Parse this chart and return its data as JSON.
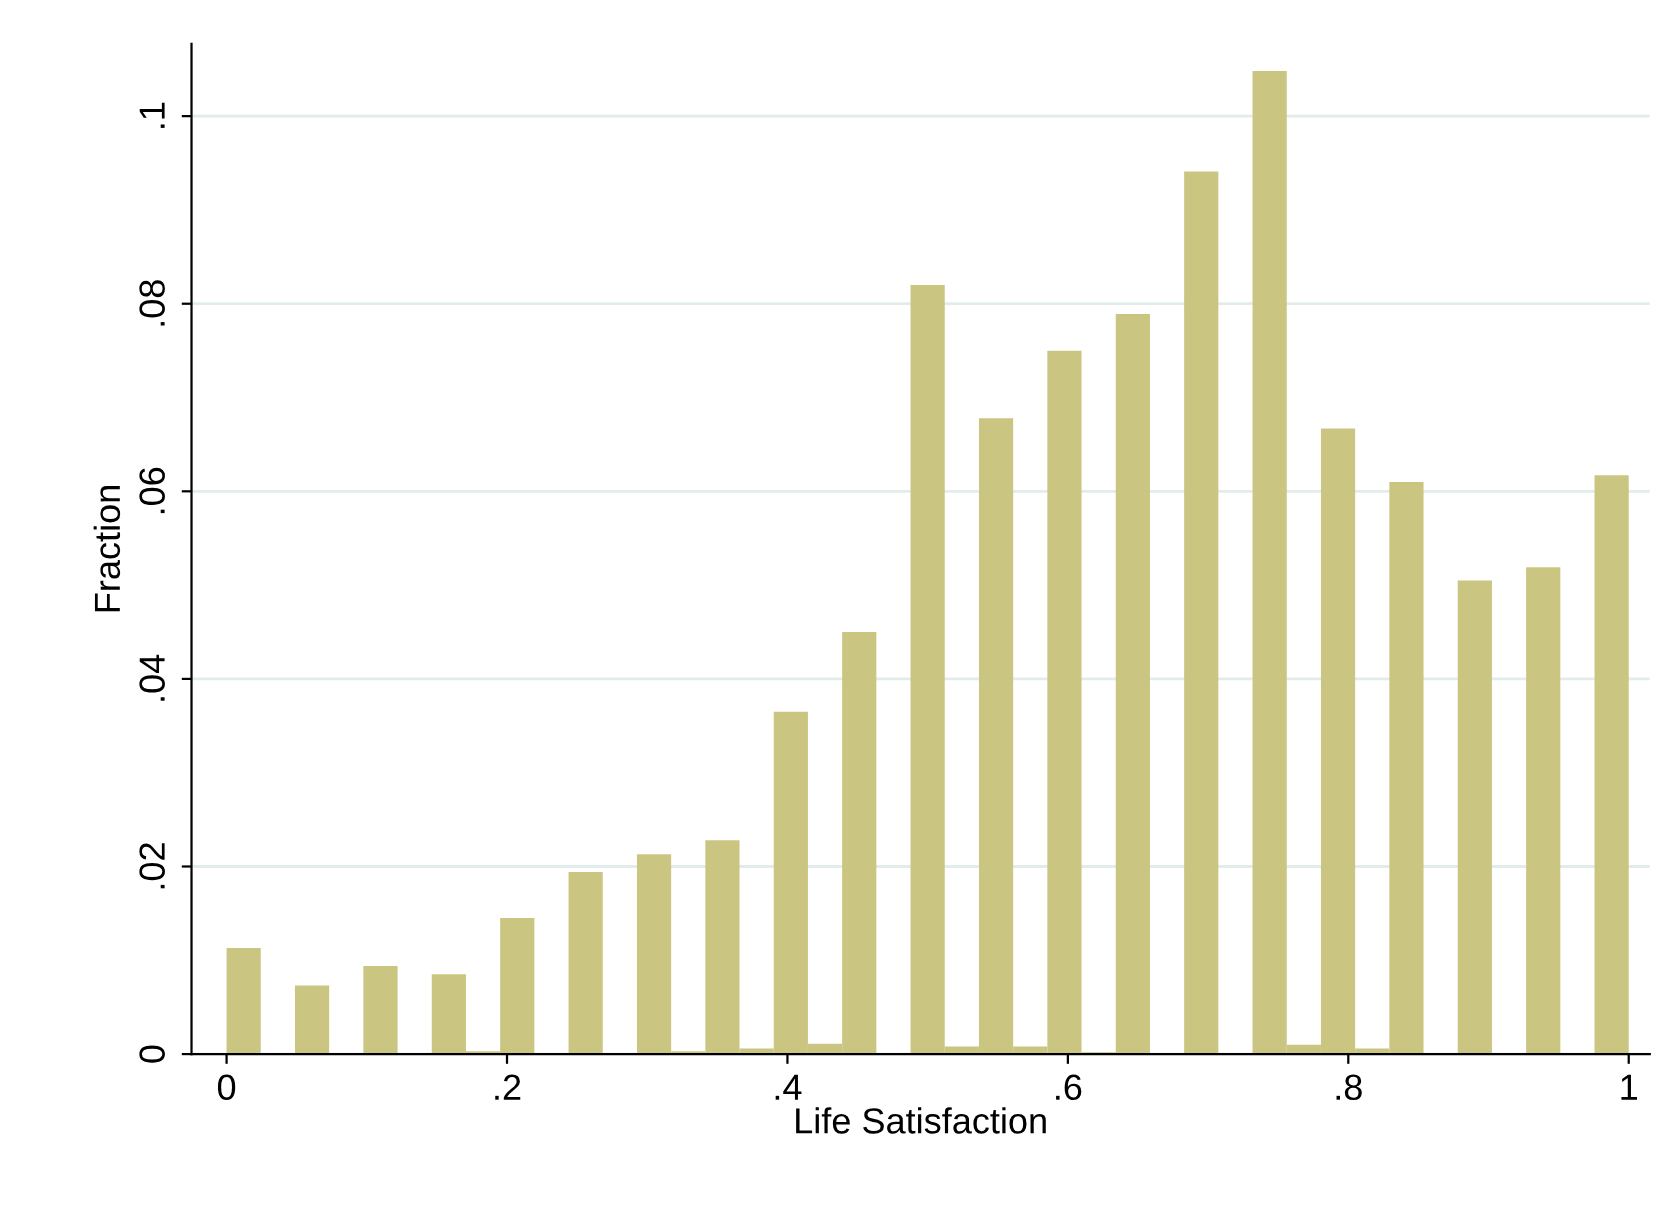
{
  "chart_data": {
    "type": "histogram",
    "xlabel": "Life Satisfaction",
    "ylabel": "Fraction",
    "color": "#cbc582",
    "bins": [
      0,
      0.02439,
      0.04878,
      0.07317,
      0.09756,
      0.12195,
      0.14634,
      0.17073,
      0.19512,
      0.21951,
      0.2439,
      0.26829,
      0.29268,
      0.31707,
      0.34146,
      0.36585,
      0.39024,
      0.41463,
      0.43902,
      0.46341,
      0.4878,
      0.5122,
      0.53659,
      0.56098,
      0.58537,
      0.60976,
      0.63415,
      0.65854,
      0.68293,
      0.70732,
      0.73171,
      0.7561,
      0.78049,
      0.80488,
      0.82927,
      0.85366,
      0.87805,
      0.90244,
      0.92683,
      0.95122,
      0.97561,
      1
    ],
    "values": [
      0.0113,
      0,
      0.0073,
      0,
      0.0094,
      0.0001,
      0.0085,
      0.0003,
      0.0145,
      0,
      0.0194,
      0,
      0.0213,
      0.0003,
      0.0228,
      0.0006,
      0.0365,
      0.0011,
      0.045,
      0,
      0.082,
      0.0008,
      0.0678,
      0.0008,
      0.075,
      0.0002,
      0.0789,
      0,
      0.0941,
      0,
      0.1048,
      0.001,
      0.0667,
      0.0006,
      0.061,
      0,
      0.0505,
      0,
      0.0519,
      0,
      0.0617
    ],
    "xlim": [
      -0.025,
      1.015
    ],
    "ylim": [
      0,
      0.1077
    ],
    "xticks": [
      0,
      {
        "value": 0.2,
        "label": ".2"
      },
      {
        "value": 0.4,
        "label": ".4"
      },
      {
        "value": 0.6,
        "label": ".6"
      },
      {
        "value": 0.8,
        "label": ".8"
      },
      1
    ],
    "yticks": [
      0,
      {
        "value": 0.02,
        "label": ".02"
      },
      {
        "value": 0.04,
        "label": ".04"
      },
      {
        "value": 0.06,
        "label": ".06"
      },
      {
        "value": 0.08,
        "label": ".08"
      },
      {
        "value": 0.1,
        "label": ".1"
      }
    ],
    "grid": "y"
  }
}
